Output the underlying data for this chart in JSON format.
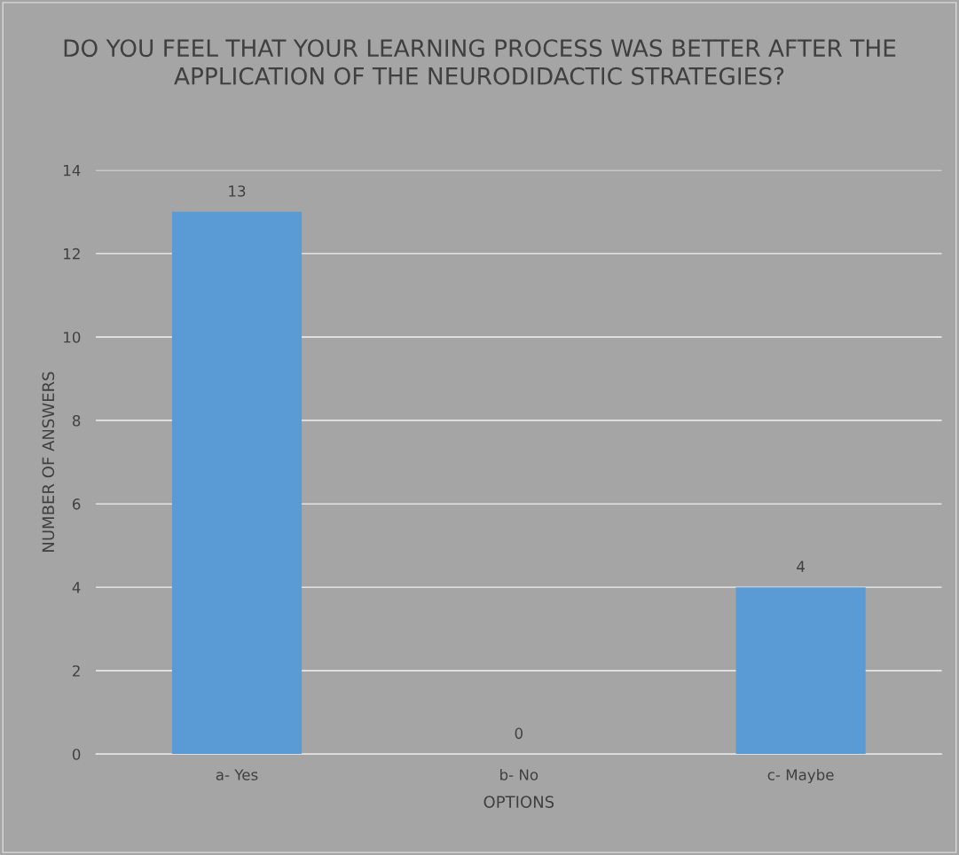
{
  "chart_data": {
    "type": "bar",
    "title": "DO YOU FEEL THAT YOUR LEARNING PROCESS WAS BETTER AFTER THE APPLICATION OF THE NEURODIDACTIC STRATEGIES?",
    "xlabel": "OPTIONS",
    "ylabel": "NUMBER OF ANSWERS",
    "categories": [
      "a- Yes",
      "b- No",
      "c- Maybe"
    ],
    "values": [
      13,
      0,
      4
    ],
    "color": "#5b9bd5",
    "ylim": [
      0,
      14
    ],
    "yticks": [
      0,
      2,
      4,
      6,
      8,
      10,
      12,
      14
    ],
    "grid": "y",
    "data_labels": true
  }
}
